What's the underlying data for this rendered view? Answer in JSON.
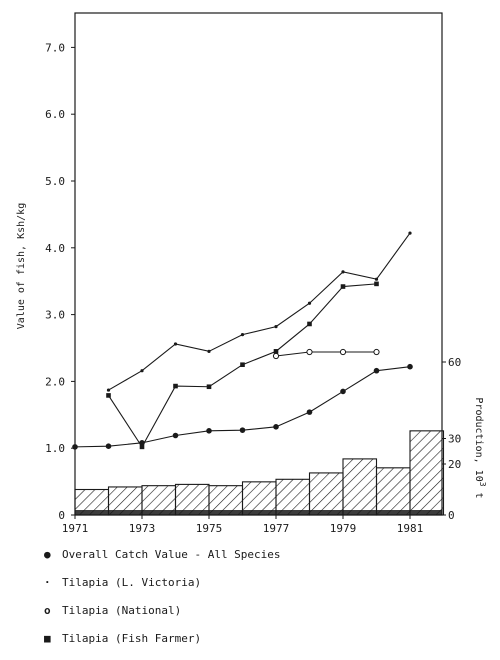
{
  "chart_data": {
    "type": "line",
    "ylabel_left": "Value of fish, Ksh/kg",
    "ylabel_right": "Production, 10^3 t",
    "ylim_left": [
      0,
      7.0
    ],
    "left_ticks": [
      "0",
      "1.0",
      "2.0",
      "3.0",
      "4.0",
      "5.0",
      "6.0",
      "7.0"
    ],
    "right_ticks": [
      "0",
      "20",
      "30",
      "60"
    ],
    "right_tick_values": [
      0,
      20,
      30,
      60
    ],
    "x_ticks": [
      "1971",
      "1973",
      "1975",
      "1977",
      "1979",
      "1981"
    ],
    "x_tick_values": [
      1971,
      1973,
      1975,
      1977,
      1979,
      1981
    ],
    "xlim": [
      1971,
      1982
    ],
    "grid": false,
    "series": [
      {
        "name": "Overall Catch Value - All Species",
        "marker": "filled-dot",
        "points": [
          [
            1971,
            1.02
          ],
          [
            1972,
            1.03
          ],
          [
            1973,
            1.08
          ],
          [
            1974,
            1.19
          ],
          [
            1975,
            1.26
          ],
          [
            1976,
            1.27
          ],
          [
            1977,
            1.32
          ],
          [
            1978,
            1.54
          ],
          [
            1979,
            1.85
          ],
          [
            1980,
            2.16
          ],
          [
            1981,
            2.22
          ]
        ]
      },
      {
        "name": "Tilapia (L. Victoria)",
        "marker": "small-dot",
        "points": [
          [
            1972,
            1.87
          ],
          [
            1973,
            2.16
          ],
          [
            1974,
            2.56
          ],
          [
            1975,
            2.45
          ],
          [
            1976,
            2.7
          ],
          [
            1977,
            2.82
          ],
          [
            1978,
            3.17
          ],
          [
            1979,
            3.64
          ],
          [
            1980,
            3.53
          ],
          [
            1981,
            4.22
          ]
        ]
      },
      {
        "name": "Tilapia (National)",
        "marker": "open-circle",
        "points": [
          [
            1977,
            2.38
          ],
          [
            1978,
            2.44
          ],
          [
            1979,
            2.44
          ],
          [
            1980,
            2.44
          ]
        ]
      },
      {
        "name": "Tilapia (Fish Farmer)",
        "marker": "filled-square",
        "points": [
          [
            1972,
            1.79
          ],
          [
            1973,
            1.02
          ],
          [
            1974,
            1.93
          ],
          [
            1975,
            1.92
          ],
          [
            1976,
            2.25
          ],
          [
            1977,
            2.45
          ],
          [
            1978,
            2.86
          ],
          [
            1979,
            3.42
          ],
          [
            1980,
            3.46
          ]
        ]
      }
    ],
    "production_bars": {
      "fill": "hatched",
      "years": [
        1971,
        1972,
        1973,
        1974,
        1975,
        1976,
        1977,
        1978,
        1979,
        1980,
        1981
      ],
      "values": [
        10,
        11,
        11.5,
        12,
        11.5,
        13,
        14,
        16.5,
        22,
        18.5,
        33
      ]
    }
  },
  "legend": [
    {
      "marker": "●",
      "label": "Overall Catch Value - All Species"
    },
    {
      "marker": "·",
      "label": "Tilapia (L. Victoria)"
    },
    {
      "marker": "o",
      "label": "Tilapia (National)"
    },
    {
      "marker": "■",
      "label": "Tilapia (Fish Farmer)"
    }
  ],
  "ylabel_left_text": "Value of fish, Ksh/kg",
  "ylabel_right_text": "Production, 10",
  "ylabel_right_sup": "3",
  "ylabel_right_unit": " t"
}
